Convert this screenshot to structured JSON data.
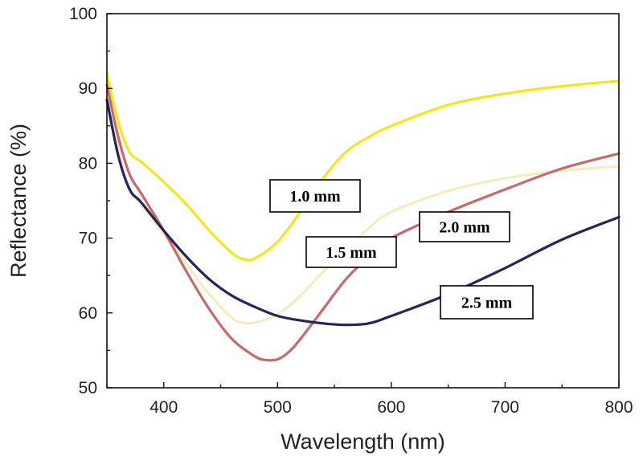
{
  "chart_data": {
    "type": "line",
    "title": "",
    "xlabel": "Wavelength (nm)",
    "ylabel": "Reflectance (%)",
    "xlim": [
      350,
      800
    ],
    "ylim": [
      50,
      100
    ],
    "xticks": [
      400,
      500,
      600,
      700,
      800
    ],
    "yticks": [
      50,
      60,
      70,
      80,
      90,
      100
    ],
    "grid": false,
    "series": [
      {
        "name": "1.0 mm",
        "color": "#f2e61e",
        "x": [
          350,
          360,
          370,
          380,
          400,
          420,
          440,
          460,
          470,
          480,
          500,
          520,
          540,
          560,
          580,
          600,
          650,
          700,
          750,
          800
        ],
        "y": [
          92,
          85.5,
          81.5,
          80.2,
          77.5,
          74.5,
          71,
          68,
          67.2,
          67.3,
          69.5,
          73.5,
          78,
          81.5,
          83.5,
          85,
          87.8,
          89.3,
          90.3,
          91
        ]
      },
      {
        "name": "1.5 mm",
        "color": "#f5ecbf",
        "x": [
          350,
          360,
          370,
          380,
          400,
          420,
          440,
          460,
          470,
          480,
          500,
          520,
          540,
          560,
          580,
          600,
          650,
          700,
          750,
          800
        ],
        "y": [
          89,
          82,
          76.5,
          74.5,
          70.5,
          66.5,
          62.5,
          59.3,
          58.7,
          58.7,
          59.8,
          62.3,
          65.5,
          68.5,
          71.3,
          73.5,
          76.3,
          78,
          79,
          79.6
        ]
      },
      {
        "name": "2.0 mm",
        "color": "#c86a6c",
        "x": [
          350,
          360,
          370,
          380,
          400,
          420,
          440,
          460,
          480,
          490,
          500,
          510,
          520,
          540,
          560,
          580,
          600,
          650,
          700,
          750,
          800
        ],
        "y": [
          90.5,
          83.5,
          78.5,
          76,
          71,
          65.5,
          60.5,
          56.5,
          54.2,
          53.7,
          53.8,
          54.8,
          56.5,
          60.5,
          64.5,
          67.5,
          70,
          73.5,
          76.5,
          79.3,
          81.3
        ]
      },
      {
        "name": "2.5 mm",
        "color": "#262459",
        "x": [
          350,
          360,
          370,
          380,
          400,
          420,
          440,
          460,
          480,
          500,
          520,
          540,
          560,
          580,
          600,
          650,
          700,
          750,
          800
        ],
        "y": [
          88.5,
          81,
          76.5,
          74.8,
          71,
          67.5,
          64.5,
          62.3,
          60.8,
          59.6,
          59,
          58.6,
          58.4,
          58.6,
          59.6,
          62.5,
          66,
          69.8,
          72.8
        ]
      }
    ],
    "annotations": [
      {
        "text": "1.0 mm"
      },
      {
        "text": "1.5 mm"
      },
      {
        "text": "2.0 mm"
      },
      {
        "text": "2.5 mm"
      }
    ]
  }
}
